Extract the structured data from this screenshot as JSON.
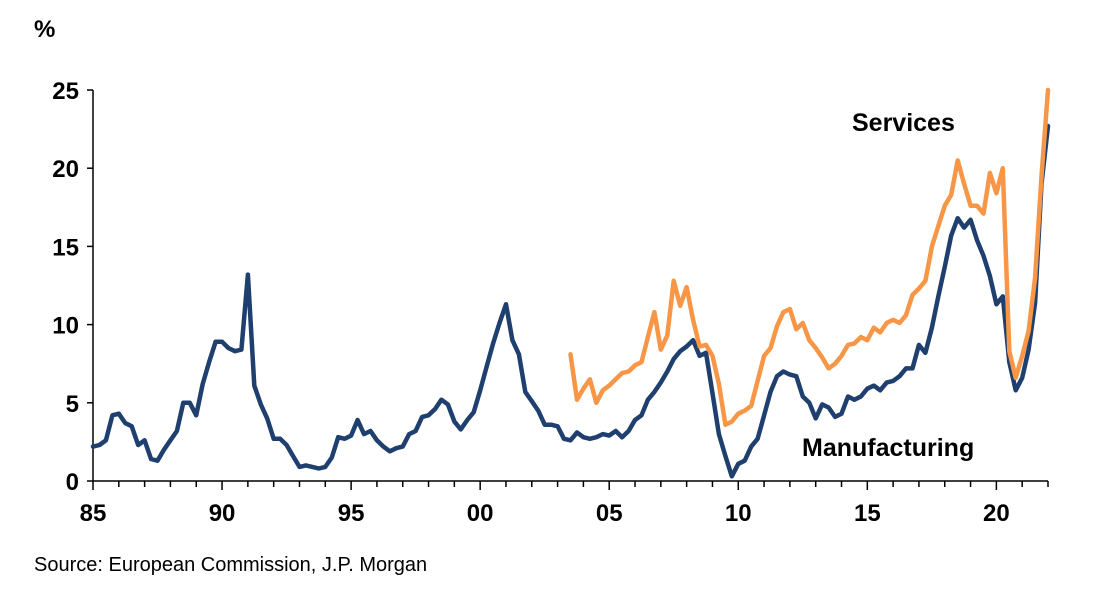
{
  "chart_data": {
    "type": "line",
    "title": "",
    "unit_label": "%",
    "xlabel": "",
    "ylabel": "%",
    "xlim": [
      1985,
      2022
    ],
    "ylim": [
      0,
      25
    ],
    "x_ticks": [
      1985,
      1990,
      1995,
      2000,
      2005,
      2010,
      2015,
      2020
    ],
    "x_tick_labels": [
      "85",
      "90",
      "95",
      "00",
      "05",
      "10",
      "15",
      "20"
    ],
    "y_ticks": [
      0,
      5,
      10,
      15,
      20,
      25
    ],
    "y_tick_labels": [
      "0",
      "5",
      "10",
      "15",
      "20",
      "25"
    ],
    "grid": false,
    "series": [
      {
        "name": "Manufacturing",
        "label": "Manufacturing",
        "color": "#1f3f6f",
        "points": [
          [
            1985.0,
            2.2
          ],
          [
            1985.25,
            2.3
          ],
          [
            1985.5,
            2.6
          ],
          [
            1985.75,
            4.2
          ],
          [
            1986.0,
            4.3
          ],
          [
            1986.25,
            3.7
          ],
          [
            1986.5,
            3.5
          ],
          [
            1986.75,
            2.3
          ],
          [
            1987.0,
            2.6
          ],
          [
            1987.25,
            1.4
          ],
          [
            1987.5,
            1.3
          ],
          [
            1987.75,
            2.0
          ],
          [
            1988.0,
            2.6
          ],
          [
            1988.25,
            3.2
          ],
          [
            1988.5,
            5.0
          ],
          [
            1988.75,
            5.0
          ],
          [
            1989.0,
            4.2
          ],
          [
            1989.25,
            6.2
          ],
          [
            1989.5,
            7.6
          ],
          [
            1989.75,
            8.9
          ],
          [
            1990.0,
            8.9
          ],
          [
            1990.25,
            8.5
          ],
          [
            1990.5,
            8.3
          ],
          [
            1990.75,
            8.4
          ],
          [
            1991.0,
            13.2
          ],
          [
            1991.25,
            6.1
          ],
          [
            1991.5,
            4.9
          ],
          [
            1991.75,
            4.0
          ],
          [
            1992.0,
            2.7
          ],
          [
            1992.25,
            2.7
          ],
          [
            1992.5,
            2.3
          ],
          [
            1992.75,
            1.6
          ],
          [
            1993.0,
            0.9
          ],
          [
            1993.25,
            1.0
          ],
          [
            1993.5,
            0.9
          ],
          [
            1993.75,
            0.8
          ],
          [
            1994.0,
            0.9
          ],
          [
            1994.25,
            1.5
          ],
          [
            1994.5,
            2.8
          ],
          [
            1994.75,
            2.7
          ],
          [
            1995.0,
            2.9
          ],
          [
            1995.25,
            3.9
          ],
          [
            1995.5,
            3.0
          ],
          [
            1995.75,
            3.2
          ],
          [
            1996.0,
            2.6
          ],
          [
            1996.25,
            2.2
          ],
          [
            1996.5,
            1.9
          ],
          [
            1996.75,
            2.1
          ],
          [
            1997.0,
            2.2
          ],
          [
            1997.25,
            3.0
          ],
          [
            1997.5,
            3.2
          ],
          [
            1997.75,
            4.1
          ],
          [
            1998.0,
            4.2
          ],
          [
            1998.25,
            4.6
          ],
          [
            1998.5,
            5.2
          ],
          [
            1998.75,
            4.9
          ],
          [
            1999.0,
            3.8
          ],
          [
            1999.25,
            3.3
          ],
          [
            1999.5,
            3.9
          ],
          [
            1999.75,
            4.4
          ],
          [
            2000.0,
            5.8
          ],
          [
            2000.25,
            7.3
          ],
          [
            2000.5,
            8.8
          ],
          [
            2000.75,
            10.1
          ],
          [
            2001.0,
            11.3
          ],
          [
            2001.25,
            9.0
          ],
          [
            2001.5,
            8.1
          ],
          [
            2001.75,
            5.7
          ],
          [
            2002.0,
            5.1
          ],
          [
            2002.25,
            4.5
          ],
          [
            2002.5,
            3.6
          ],
          [
            2002.75,
            3.6
          ],
          [
            2003.0,
            3.5
          ],
          [
            2003.25,
            2.7
          ],
          [
            2003.5,
            2.6
          ],
          [
            2003.75,
            3.1
          ],
          [
            2004.0,
            2.8
          ],
          [
            2004.25,
            2.7
          ],
          [
            2004.5,
            2.8
          ],
          [
            2004.75,
            3.0
          ],
          [
            2005.0,
            2.9
          ],
          [
            2005.25,
            3.2
          ],
          [
            2005.5,
            2.8
          ],
          [
            2005.75,
            3.2
          ],
          [
            2006.0,
            3.9
          ],
          [
            2006.25,
            4.2
          ],
          [
            2006.5,
            5.2
          ],
          [
            2006.75,
            5.7
          ],
          [
            2007.0,
            6.3
          ],
          [
            2007.25,
            7.0
          ],
          [
            2007.5,
            7.8
          ],
          [
            2007.75,
            8.3
          ],
          [
            2008.0,
            8.6
          ],
          [
            2008.25,
            9.0
          ],
          [
            2008.5,
            8.0
          ],
          [
            2008.75,
            8.2
          ],
          [
            2009.0,
            5.6
          ],
          [
            2009.25,
            3.0
          ],
          [
            2009.5,
            1.6
          ],
          [
            2009.75,
            0.3
          ],
          [
            2010.0,
            1.1
          ],
          [
            2010.25,
            1.3
          ],
          [
            2010.5,
            2.2
          ],
          [
            2010.75,
            2.7
          ],
          [
            2011.0,
            4.2
          ],
          [
            2011.25,
            5.7
          ],
          [
            2011.5,
            6.7
          ],
          [
            2011.75,
            7.0
          ],
          [
            2012.0,
            6.8
          ],
          [
            2012.25,
            6.7
          ],
          [
            2012.5,
            5.4
          ],
          [
            2012.75,
            5.0
          ],
          [
            2013.0,
            4.0
          ],
          [
            2013.25,
            4.9
          ],
          [
            2013.5,
            4.7
          ],
          [
            2013.75,
            4.1
          ],
          [
            2014.0,
            4.3
          ],
          [
            2014.25,
            5.4
          ],
          [
            2014.5,
            5.2
          ],
          [
            2014.75,
            5.4
          ],
          [
            2015.0,
            5.9
          ],
          [
            2015.25,
            6.1
          ],
          [
            2015.5,
            5.8
          ],
          [
            2015.75,
            6.3
          ],
          [
            2016.0,
            6.4
          ],
          [
            2016.25,
            6.7
          ],
          [
            2016.5,
            7.2
          ],
          [
            2016.75,
            7.2
          ],
          [
            2017.0,
            8.7
          ],
          [
            2017.25,
            8.2
          ],
          [
            2017.5,
            9.8
          ],
          [
            2017.75,
            11.8
          ],
          [
            2018.0,
            13.7
          ],
          [
            2018.25,
            15.7
          ],
          [
            2018.5,
            16.8
          ],
          [
            2018.75,
            16.2
          ],
          [
            2019.0,
            16.7
          ],
          [
            2019.25,
            15.4
          ],
          [
            2019.5,
            14.4
          ],
          [
            2019.75,
            13.1
          ],
          [
            2020.0,
            11.3
          ],
          [
            2020.25,
            11.8
          ],
          [
            2020.5,
            7.6
          ],
          [
            2020.75,
            5.8
          ],
          [
            2021.0,
            6.6
          ],
          [
            2021.25,
            8.4
          ],
          [
            2021.5,
            11.4
          ],
          [
            2021.75,
            19.0
          ],
          [
            2022.0,
            22.7
          ]
        ]
      },
      {
        "name": "Services",
        "label": "Services",
        "color": "#f79646",
        "points": [
          [
            2003.5,
            8.1
          ],
          [
            2003.75,
            5.2
          ],
          [
            2004.0,
            5.9
          ],
          [
            2004.25,
            6.5
          ],
          [
            2004.5,
            5.0
          ],
          [
            2004.75,
            5.8
          ],
          [
            2005.0,
            6.1
          ],
          [
            2005.25,
            6.5
          ],
          [
            2005.5,
            6.9
          ],
          [
            2005.75,
            7.0
          ],
          [
            2006.0,
            7.4
          ],
          [
            2006.25,
            7.6
          ],
          [
            2006.5,
            9.2
          ],
          [
            2006.75,
            10.8
          ],
          [
            2007.0,
            8.4
          ],
          [
            2007.25,
            9.3
          ],
          [
            2007.5,
            12.8
          ],
          [
            2007.75,
            11.2
          ],
          [
            2008.0,
            12.4
          ],
          [
            2008.25,
            10.3
          ],
          [
            2008.5,
            8.6
          ],
          [
            2008.75,
            8.7
          ],
          [
            2009.0,
            8.0
          ],
          [
            2009.25,
            6.2
          ],
          [
            2009.5,
            3.6
          ],
          [
            2009.75,
            3.8
          ],
          [
            2010.0,
            4.3
          ],
          [
            2010.25,
            4.5
          ],
          [
            2010.5,
            4.8
          ],
          [
            2010.75,
            6.4
          ],
          [
            2011.0,
            8.0
          ],
          [
            2011.25,
            8.5
          ],
          [
            2011.5,
            9.9
          ],
          [
            2011.75,
            10.8
          ],
          [
            2012.0,
            11.0
          ],
          [
            2012.25,
            9.7
          ],
          [
            2012.5,
            10.1
          ],
          [
            2012.75,
            9.0
          ],
          [
            2013.0,
            8.5
          ],
          [
            2013.25,
            7.9
          ],
          [
            2013.5,
            7.2
          ],
          [
            2013.75,
            7.5
          ],
          [
            2014.0,
            8.0
          ],
          [
            2014.25,
            8.7
          ],
          [
            2014.5,
            8.8
          ],
          [
            2014.75,
            9.2
          ],
          [
            2015.0,
            9.0
          ],
          [
            2015.25,
            9.8
          ],
          [
            2015.5,
            9.5
          ],
          [
            2015.75,
            10.1
          ],
          [
            2016.0,
            10.3
          ],
          [
            2016.25,
            10.1
          ],
          [
            2016.5,
            10.6
          ],
          [
            2016.75,
            11.9
          ],
          [
            2017.0,
            12.3
          ],
          [
            2017.25,
            12.8
          ],
          [
            2017.5,
            15.0
          ],
          [
            2017.75,
            16.3
          ],
          [
            2018.0,
            17.6
          ],
          [
            2018.25,
            18.3
          ],
          [
            2018.5,
            20.5
          ],
          [
            2018.75,
            19.0
          ],
          [
            2019.0,
            17.6
          ],
          [
            2019.25,
            17.6
          ],
          [
            2019.5,
            17.1
          ],
          [
            2019.75,
            19.7
          ],
          [
            2020.0,
            18.4
          ],
          [
            2020.25,
            20.0
          ],
          [
            2020.5,
            8.3
          ],
          [
            2020.75,
            6.6
          ],
          [
            2021.0,
            8.0
          ],
          [
            2021.25,
            9.6
          ],
          [
            2021.5,
            13.0
          ],
          [
            2021.75,
            19.5
          ],
          [
            2022.0,
            25.0
          ]
        ]
      }
    ],
    "annotations": [
      {
        "text": "Services",
        "series": "Services"
      },
      {
        "text": "Manufacturing",
        "series": "Manufacturing"
      }
    ],
    "legend": "none",
    "source": "Source: European Commission, J.P. Morgan"
  }
}
